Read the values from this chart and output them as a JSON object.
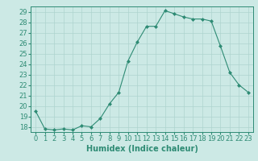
{
  "x": [
    0,
    1,
    2,
    3,
    4,
    5,
    6,
    7,
    8,
    9,
    10,
    11,
    12,
    13,
    14,
    15,
    16,
    17,
    18,
    19,
    20,
    21,
    22,
    23
  ],
  "y": [
    19.5,
    17.8,
    17.7,
    17.8,
    17.7,
    18.1,
    18.0,
    18.8,
    20.2,
    21.3,
    24.3,
    26.1,
    27.6,
    27.6,
    29.1,
    28.8,
    28.5,
    28.3,
    28.3,
    28.1,
    25.7,
    23.2,
    22.0,
    21.3
  ],
  "line_color": "#2e8b74",
  "marker": "D",
  "marker_size": 2,
  "bg_color": "#cce9e5",
  "grid_color": "#aed4cf",
  "xlabel": "Humidex (Indice chaleur)",
  "xlim": [
    -0.5,
    23.5
  ],
  "ylim": [
    17.5,
    29.5
  ],
  "yticks": [
    18,
    19,
    20,
    21,
    22,
    23,
    24,
    25,
    26,
    27,
    28,
    29
  ],
  "xticks": [
    0,
    1,
    2,
    3,
    4,
    5,
    6,
    7,
    8,
    9,
    10,
    11,
    12,
    13,
    14,
    15,
    16,
    17,
    18,
    19,
    20,
    21,
    22,
    23
  ],
  "tick_fontsize": 6,
  "xlabel_fontsize": 7,
  "linewidth": 0.8
}
